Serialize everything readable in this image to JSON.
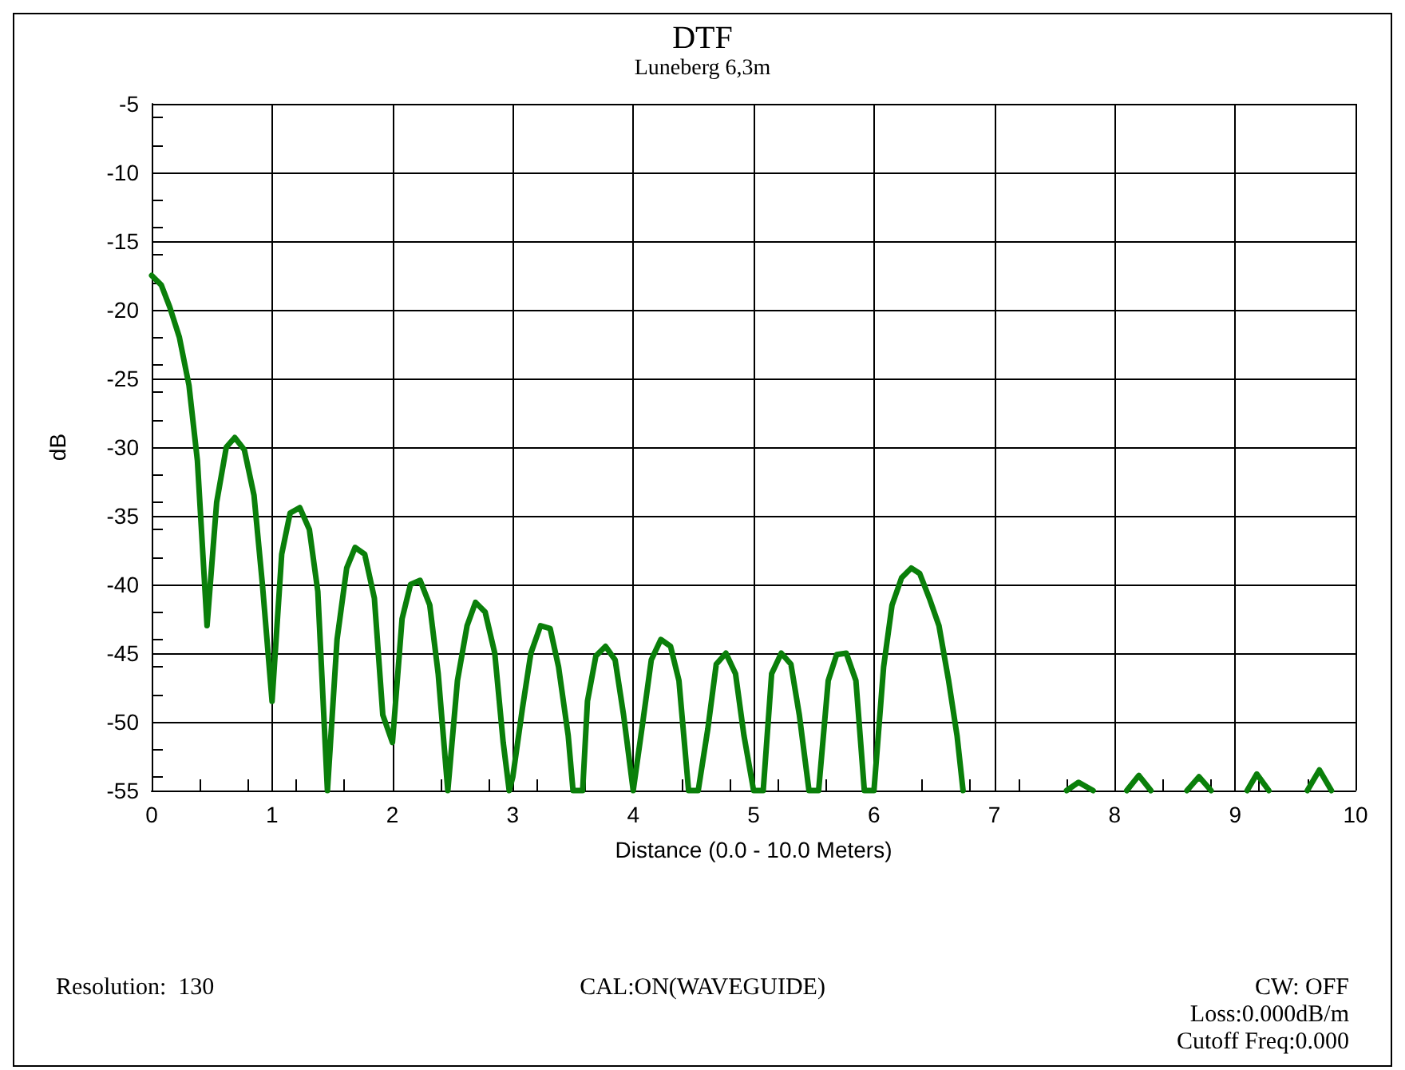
{
  "chart_data": {
    "type": "line",
    "title": "DTF",
    "subtitle": "Luneberg 6,3m",
    "xlabel": "Distance (0.0 - 10.0 Meters)",
    "ylabel": "dB",
    "x": [
      0,
      0.08,
      0.15,
      0.23,
      0.31,
      0.38,
      0.46,
      0.54,
      0.62,
      0.69,
      0.77,
      0.85,
      0.92,
      1.0,
      1.08,
      1.15,
      1.23,
      1.31,
      1.38,
      1.46,
      1.54,
      1.62,
      1.69,
      1.77,
      1.85,
      1.92,
      2.0,
      2.08,
      2.15,
      2.23,
      2.31,
      2.38,
      2.46,
      2.54,
      2.62,
      2.69,
      2.77,
      2.85,
      2.92,
      2.97,
      3.0,
      3.08,
      3.15,
      3.23,
      3.31,
      3.38,
      3.46,
      3.5,
      3.58,
      3.62,
      3.69,
      3.77,
      3.85,
      3.92,
      4.0,
      4.08,
      4.15,
      4.23,
      4.31,
      4.38,
      4.46,
      4.54,
      4.62,
      4.69,
      4.77,
      4.85,
      4.92,
      5.0,
      5.08,
      5.15,
      5.23,
      5.31,
      5.38,
      5.46,
      5.54,
      5.62,
      5.69,
      5.77,
      5.85,
      5.92,
      6.0,
      6.08,
      6.15,
      6.23,
      6.31,
      6.38,
      6.46,
      6.54,
      6.62,
      6.69,
      6.74,
      7.2,
      7.6,
      7.7,
      7.82,
      7.95,
      8.1,
      8.2,
      8.3,
      8.45,
      8.6,
      8.7,
      8.8,
      8.95,
      9.1,
      9.18,
      9.28,
      9.45,
      9.6,
      9.7,
      9.8
    ],
    "series": [
      {
        "color": "#0a7f0a",
        "values": [
          -17.5,
          -18.2,
          -19.8,
          -22,
          -25.5,
          -31,
          -43,
          -34,
          -30,
          -29.3,
          -30.2,
          -33.5,
          -40,
          -48.5,
          -37.8,
          -34.8,
          -34.4,
          -36,
          -40.5,
          -55,
          -44,
          -38.8,
          -37.3,
          -37.8,
          -41,
          -49.5,
          -51.5,
          -42.5,
          -40,
          -39.7,
          -41.5,
          -46.5,
          -55,
          -47,
          -43,
          -41.3,
          -42,
          -45,
          -51.5,
          -55,
          -54,
          -49,
          -45,
          -43,
          -43.2,
          -46,
          -51,
          -55,
          -55,
          -48.5,
          -45.2,
          -44.5,
          -45.5,
          -49.5,
          -55,
          -50,
          -45.5,
          -44,
          -44.5,
          -47,
          -55,
          -55,
          -50.5,
          -45.8,
          -45,
          -46.5,
          -51,
          -55,
          -55,
          -46.5,
          -45,
          -45.8,
          -49.5,
          -55,
          -55,
          -47,
          -45.1,
          -45,
          -47,
          -55,
          -55,
          -46,
          -41.5,
          -39.5,
          -38.8,
          -39.2,
          -41,
          -43,
          -47,
          -51,
          -55,
          null,
          -55,
          -54.4,
          -55,
          null,
          -55,
          -53.9,
          -55,
          null,
          -55,
          -54,
          -55,
          null,
          -55,
          -53.8,
          -55,
          null,
          -55,
          -53.5,
          -55
        ]
      }
    ],
    "xlim": [
      0,
      10
    ],
    "xticks": [
      0,
      1,
      2,
      3,
      4,
      5,
      6,
      7,
      8,
      9,
      10
    ],
    "ylim": [
      -55,
      -5
    ],
    "yticks": [
      -55,
      -50,
      -45,
      -40,
      -35,
      -30,
      -25,
      -20,
      -15,
      -10,
      -5
    ],
    "grid": true,
    "marker": "none",
    "line_style": "solid",
    "annotations": [
      "Resolution:  130",
      "CAL:ON(WAVEGUIDE)",
      "CW: OFF",
      "Loss:0.000dB/m",
      "Cutoff Freq:0.000"
    ]
  }
}
